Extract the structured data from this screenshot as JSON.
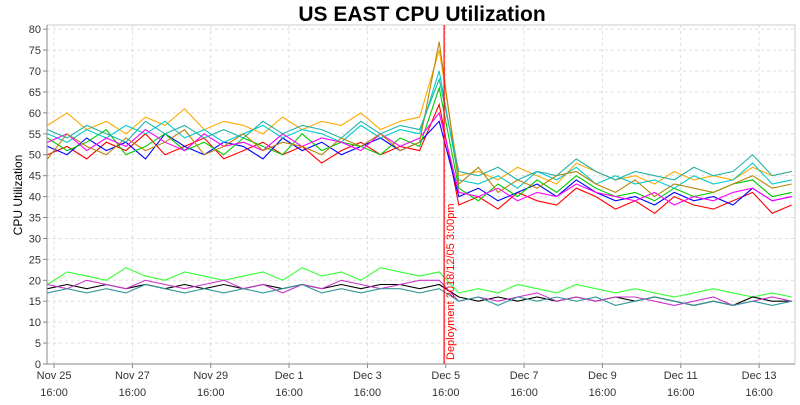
{
  "chart_data": {
    "type": "line",
    "title": "US EAST CPU Utilization",
    "xlabel": "",
    "ylabel": "CPU Utilization",
    "ylim": [
      0,
      81
    ],
    "xlim": [
      "2018-11-25 11:40",
      "2018-12-14 14:00"
    ],
    "yticks": [
      0,
      5,
      10,
      15,
      20,
      25,
      30,
      35,
      40,
      45,
      50,
      55,
      60,
      65,
      70,
      75,
      80
    ],
    "xticks": [
      {
        "date": "2018-11-25 16:00",
        "line1": "Nov 25",
        "line2": "16:00"
      },
      {
        "date": "2018-11-27 16:00",
        "line1": "Nov 27",
        "line2": "16:00"
      },
      {
        "date": "2018-11-29 16:00",
        "line1": "Nov 29",
        "line2": "16:00"
      },
      {
        "date": "2018-12-01 16:00",
        "line1": "Dec 1",
        "line2": "16:00"
      },
      {
        "date": "2018-12-03 16:00",
        "line1": "Dec 3",
        "line2": "16:00"
      },
      {
        "date": "2018-12-05 16:00",
        "line1": "Dec 5",
        "line2": "16:00"
      },
      {
        "date": "2018-12-07 16:00",
        "line1": "Dec 7",
        "line2": "16:00"
      },
      {
        "date": "2018-12-09 16:00",
        "line1": "Dec 9",
        "line2": "16:00"
      },
      {
        "date": "2018-12-11 16:00",
        "line1": "Dec 11",
        "line2": "16:00"
      },
      {
        "date": "2018-12-13 16:00",
        "line1": "Dec 13",
        "line2": "16:00"
      }
    ],
    "grid": true,
    "legend": "none",
    "annotation": {
      "date": "2018-12-05 15:00",
      "label": "Deployment 2018/12/05 3:00pm",
      "color": "#ff0000"
    },
    "x": [
      "2018-11-25 12:00",
      "2018-11-26 00:00",
      "2018-11-26 12:00",
      "2018-11-27 00:00",
      "2018-11-27 12:00",
      "2018-11-28 00:00",
      "2018-11-28 12:00",
      "2018-11-29 00:00",
      "2018-11-29 12:00",
      "2018-11-30 00:00",
      "2018-11-30 12:00",
      "2018-12-01 00:00",
      "2018-12-01 12:00",
      "2018-12-02 00:00",
      "2018-12-02 12:00",
      "2018-12-03 00:00",
      "2018-12-03 12:00",
      "2018-12-04 00:00",
      "2018-12-04 12:00",
      "2018-12-05 00:00",
      "2018-12-05 12:00",
      "2018-12-06 00:00",
      "2018-12-06 12:00",
      "2018-12-07 00:00",
      "2018-12-07 12:00",
      "2018-12-08 00:00",
      "2018-12-08 12:00",
      "2018-12-09 00:00",
      "2018-12-09 12:00",
      "2018-12-10 00:00",
      "2018-12-10 12:00",
      "2018-12-11 00:00",
      "2018-12-11 12:00",
      "2018-12-12 00:00",
      "2018-12-12 12:00",
      "2018-12-13 00:00",
      "2018-12-13 12:00",
      "2018-12-14 00:00",
      "2018-12-14 12:00"
    ],
    "series": [
      {
        "color": "#ff0000",
        "values": [
          50,
          52,
          49,
          53,
          51,
          55,
          50,
          52,
          54,
          49,
          51,
          53,
          50,
          52,
          48,
          51,
          53,
          50,
          52,
          51,
          62,
          38,
          40,
          37,
          41,
          39,
          38,
          42,
          40,
          37,
          39,
          36,
          40,
          38,
          37,
          39,
          41,
          36,
          38
        ]
      },
      {
        "color": "#0000ff",
        "values": [
          52,
          50,
          54,
          51,
          53,
          49,
          55,
          52,
          50,
          53,
          52,
          49,
          54,
          51,
          53,
          50,
          52,
          54,
          51,
          53,
          58,
          40,
          42,
          39,
          41,
          43,
          40,
          44,
          41,
          39,
          40,
          38,
          41,
          39,
          40,
          38,
          42,
          39,
          40
        ]
      },
      {
        "color": "#00cc00",
        "values": [
          54,
          51,
          53,
          56,
          50,
          52,
          55,
          51,
          53,
          50,
          54,
          52,
          50,
          55,
          51,
          53,
          52,
          50,
          54,
          52,
          66,
          42,
          39,
          43,
          40,
          44,
          41,
          45,
          42,
          40,
          41,
          39,
          42,
          40,
          41,
          43,
          44,
          40,
          41
        ]
      },
      {
        "color": "#ffaa00",
        "values": [
          57,
          60,
          56,
          58,
          55,
          59,
          57,
          61,
          56,
          58,
          57,
          55,
          59,
          56,
          58,
          57,
          60,
          56,
          58,
          59,
          75,
          45,
          46,
          44,
          47,
          45,
          43,
          48,
          46,
          44,
          45,
          43,
          46,
          44,
          45,
          44,
          47,
          45,
          46
        ]
      },
      {
        "color": "#00cccc",
        "values": [
          55,
          53,
          56,
          54,
          57,
          55,
          58,
          54,
          56,
          53,
          55,
          57,
          54,
          56,
          55,
          53,
          57,
          54,
          56,
          55,
          70,
          44,
          43,
          45,
          42,
          46,
          44,
          47,
          43,
          45,
          43,
          44,
          42,
          45,
          43,
          44,
          48,
          43,
          44
        ]
      },
      {
        "color": "#ff00ff",
        "values": [
          53,
          55,
          51,
          54,
          52,
          56,
          53,
          51,
          55,
          52,
          53,
          51,
          55,
          52,
          54,
          53,
          51,
          55,
          52,
          54,
          60,
          41,
          40,
          42,
          39,
          41,
          40,
          43,
          41,
          40,
          39,
          41,
          38,
          40,
          39,
          41,
          42,
          39,
          40
        ]
      },
      {
        "color": "#b8860b",
        "values": [
          49,
          55,
          52,
          50,
          54,
          51,
          53,
          56,
          50,
          52,
          55,
          51,
          53,
          52,
          50,
          54,
          52,
          55,
          51,
          53,
          77,
          43,
          47,
          41,
          44,
          42,
          45,
          46,
          43,
          41,
          44,
          40,
          43,
          42,
          41,
          43,
          45,
          42,
          43
        ]
      },
      {
        "color": "#20b2aa",
        "values": [
          56,
          54,
          57,
          55,
          53,
          58,
          55,
          57,
          54,
          56,
          54,
          58,
          55,
          57,
          56,
          54,
          58,
          55,
          57,
          56,
          68,
          46,
          45,
          47,
          44,
          46,
          45,
          49,
          46,
          44,
          46,
          45,
          44,
          47,
          45,
          46,
          50,
          45,
          46
        ]
      },
      {
        "color": "#33ff33",
        "values": [
          19,
          22,
          21,
          20,
          23,
          21,
          20,
          22,
          21,
          20,
          21,
          22,
          20,
          23,
          21,
          22,
          20,
          23,
          22,
          21,
          22,
          17,
          18,
          17,
          19,
          18,
          17,
          19,
          18,
          17,
          18,
          17,
          16,
          17,
          18,
          17,
          16,
          17,
          16
        ]
      },
      {
        "color": "#000000",
        "values": [
          18,
          19,
          18,
          19,
          18,
          19,
          18,
          19,
          18,
          19,
          18,
          19,
          18,
          19,
          18,
          19,
          18,
          19,
          19,
          18,
          19,
          16,
          15,
          16,
          15,
          16,
          15,
          16,
          15,
          16,
          15,
          16,
          15,
          14,
          15,
          14,
          16,
          15,
          15
        ]
      },
      {
        "color": "#cc33cc",
        "values": [
          19,
          18,
          20,
          19,
          18,
          20,
          19,
          18,
          19,
          20,
          18,
          19,
          17,
          19,
          18,
          20,
          19,
          18,
          19,
          20,
          20,
          15,
          16,
          15,
          16,
          17,
          15,
          16,
          15,
          16,
          16,
          15,
          14,
          15,
          16,
          14,
          15,
          16,
          15
        ]
      },
      {
        "color": "#339999",
        "values": [
          17,
          18,
          17,
          18,
          17,
          19,
          18,
          17,
          18,
          17,
          18,
          17,
          18,
          19,
          17,
          18,
          17,
          18,
          18,
          17,
          18,
          15,
          16,
          14,
          16,
          15,
          16,
          15,
          16,
          14,
          15,
          16,
          15,
          14,
          15,
          14,
          15,
          14,
          15
        ]
      }
    ]
  }
}
